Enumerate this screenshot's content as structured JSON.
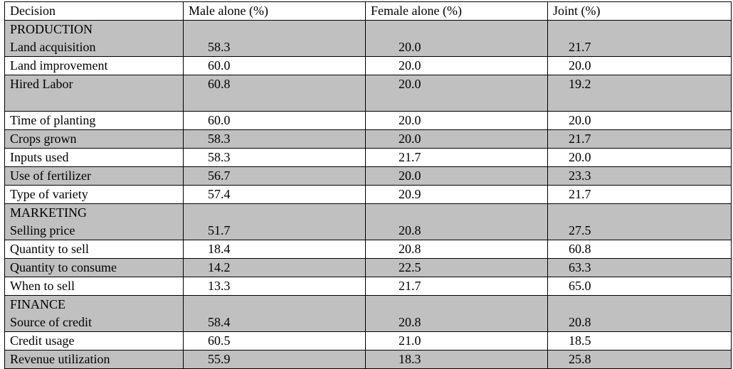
{
  "table": {
    "headers": [
      "Decision",
      "Male alone (%)",
      "Female alone (%)",
      "Joint (%)"
    ],
    "rows": [
      {
        "section": "PRODUCTION",
        "decision": "Land acquisition",
        "male": "58.3",
        "female": "20.0",
        "joint": "21.7"
      },
      {
        "decision": "Land improvement",
        "male": "60.0",
        "female": "20.0",
        "joint": "20.0"
      },
      {
        "decision": "Hired Labor",
        "male": "60.8",
        "female": "20.0",
        "joint": "19.2"
      },
      {
        "decision": "Time of planting",
        "male": "60.0",
        "female": "20.0",
        "joint": "20.0"
      },
      {
        "decision": "Crops grown",
        "male": "58.3",
        "female": "20.0",
        "joint": "21.7"
      },
      {
        "decision": "Inputs used",
        "male": "58.3",
        "female": "21.7",
        "joint": "20.0"
      },
      {
        "decision": "Use of fertilizer",
        "male": "56.7",
        "female": "20.0",
        "joint": "23.3"
      },
      {
        "decision": "Type of variety",
        "male": "57.4",
        "female": "20.9",
        "joint": "21.7"
      },
      {
        "section": "MARKETING",
        "decision": "Selling price",
        "male": "51.7",
        "female": "20.8",
        "joint": "27.5"
      },
      {
        "decision": "Quantity to sell",
        "male": "18.4",
        "female": "20.8",
        "joint": "60.8"
      },
      {
        "decision": "Quantity to consume",
        "male": "14.2",
        "female": "22.5",
        "joint": "63.3"
      },
      {
        "decision": "When to sell",
        "male": "13.3",
        "female": "21.7",
        "joint": "65.0"
      },
      {
        "section": "FINANCE",
        "decision": "Source of credit",
        "male": "58.4",
        "female": "20.8",
        "joint": "20.8"
      },
      {
        "decision": "Credit usage",
        "male": "60.5",
        "female": "21.0",
        "joint": "18.5"
      },
      {
        "decision": "Revenue utilization",
        "male": "55.9",
        "female": "18.3",
        "joint": "25.8"
      }
    ]
  },
  "colors": {
    "shaded_row": "#c0c0c0",
    "plain_row": "#ffffff",
    "border": "#000000"
  }
}
